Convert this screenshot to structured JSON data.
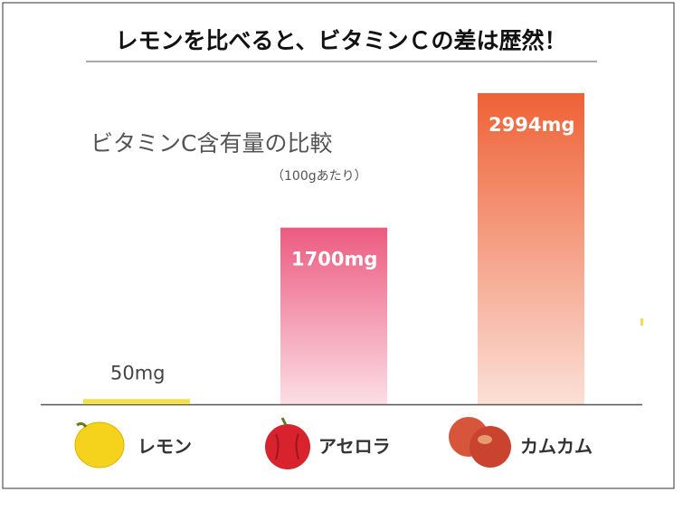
{
  "chart_data": {
    "type": "bar",
    "title": "レモンを比べると、ビタミンＣの差は歴然！",
    "subtitle": "ビタミンC含有量の比較",
    "note": "（100gあたり）",
    "categories": [
      "レモン",
      "アセロラ",
      "カムカム"
    ],
    "values": [
      50,
      1700,
      2994
    ],
    "value_labels": [
      "50mg",
      "1700mg",
      "2994mg"
    ],
    "colors": [
      "#f2e04a",
      "#ec5b80",
      "#ee6236"
    ]
  }
}
